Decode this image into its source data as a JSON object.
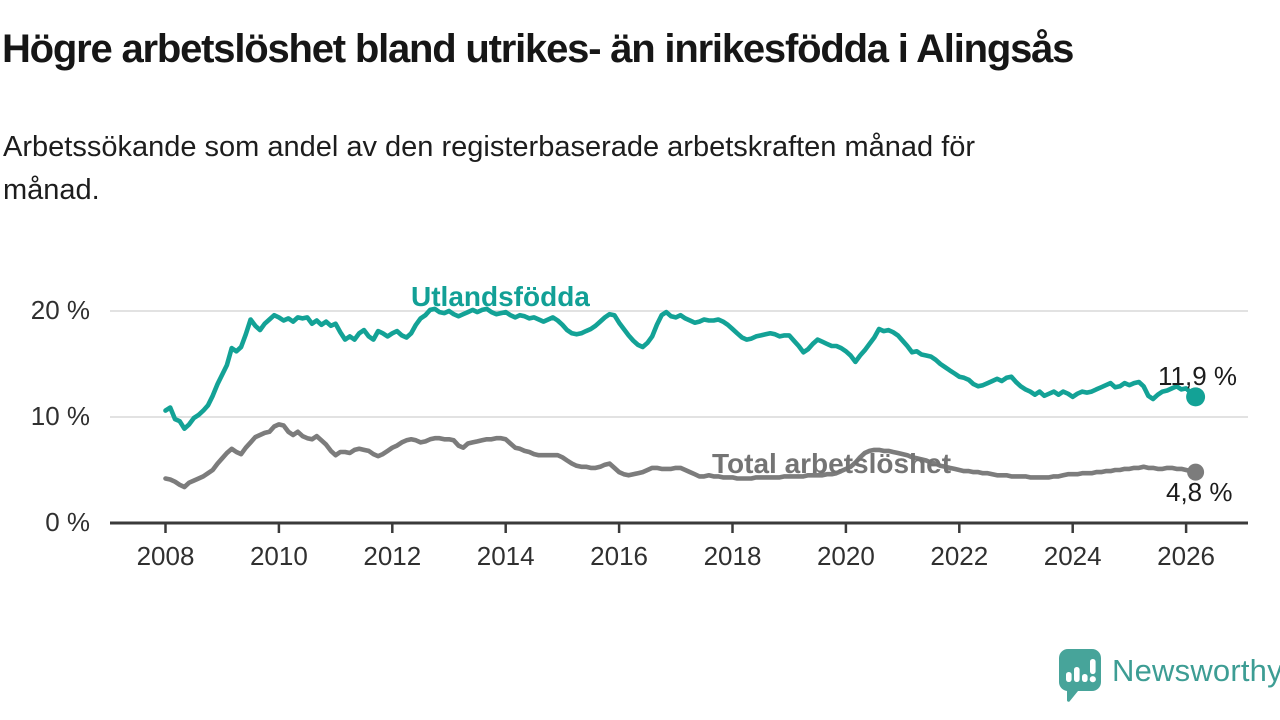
{
  "title": "Högre arbetslöshet bland utrikes- än inrikesfödda i Alingsås",
  "subtitle_line1": "Arbetssökande som andel av den registerbaserade arbetskraften månad för",
  "subtitle_line2": "månad.",
  "branding": {
    "name": "Newsworthy",
    "logo_icon": "speech-bubble-bar-chart-icon",
    "logo_color": "#47a49a",
    "wordmark_color": "#3d9d94"
  },
  "colors": {
    "foreign_born_line": "#13a296",
    "total_line": "#7c7c7c",
    "axis": "#3a3a3a",
    "gridline": "#d9d9d9",
    "text": "#1c1c1c"
  },
  "chart_data": {
    "type": "line",
    "title": "Högre arbetslöshet bland utrikes- än inrikesfödda i Alingsås",
    "subtitle": "Arbetssökande som andel av den registerbaserade arbetskraften månad för månad.",
    "x_unit": "month",
    "x_start_year": 2008,
    "points_per_year": 12,
    "x_end_label_period": "early 2026",
    "grid": "horizontal-only",
    "legend_position": "inline-labels",
    "ylim": [
      0,
      23
    ],
    "y_ticks": [
      {
        "label": "0 %",
        "value": 0
      },
      {
        "label": "10 %",
        "value": 10
      },
      {
        "label": "20 %",
        "value": 20
      }
    ],
    "x_ticks": [
      {
        "label": "2008",
        "year": 2008
      },
      {
        "label": "2010",
        "year": 2010
      },
      {
        "label": "2012",
        "year": 2012
      },
      {
        "label": "2014",
        "year": 2014
      },
      {
        "label": "2016",
        "year": 2016
      },
      {
        "label": "2018",
        "year": 2018
      },
      {
        "label": "2020",
        "year": 2020
      },
      {
        "label": "2022",
        "year": 2022
      },
      {
        "label": "2024",
        "year": 2024
      },
      {
        "label": "2026",
        "year": 2026
      }
    ],
    "series": [
      {
        "name": "Utlandsfödda",
        "color": "#13a296",
        "end_label": "11,9 %",
        "end_value": 11.9,
        "values": [
          10.6,
          10.9,
          9.8,
          9.6,
          8.9,
          9.3,
          9.9,
          10.2,
          10.6,
          11.1,
          12.0,
          13.1,
          14.0,
          14.9,
          16.5,
          16.2,
          16.6,
          17.8,
          19.2,
          18.6,
          18.2,
          18.8,
          19.2,
          19.6,
          19.4,
          19.1,
          19.3,
          19.0,
          19.4,
          19.3,
          19.4,
          18.8,
          19.1,
          18.7,
          19.0,
          18.6,
          18.8,
          18.0,
          17.3,
          17.6,
          17.3,
          17.9,
          18.2,
          17.6,
          17.3,
          18.1,
          17.9,
          17.6,
          17.9,
          18.1,
          17.7,
          17.5,
          17.9,
          18.7,
          19.3,
          19.6,
          20.1,
          20.2,
          19.9,
          19.8,
          20.0,
          19.7,
          19.5,
          19.7,
          19.9,
          20.1,
          19.9,
          20.1,
          20.2,
          19.9,
          19.7,
          19.8,
          19.9,
          19.6,
          19.4,
          19.6,
          19.5,
          19.3,
          19.4,
          19.2,
          19.0,
          19.2,
          19.4,
          19.1,
          18.7,
          18.2,
          17.9,
          17.8,
          17.9,
          18.1,
          18.3,
          18.6,
          19.0,
          19.4,
          19.7,
          19.6,
          18.9,
          18.3,
          17.7,
          17.2,
          16.8,
          16.6,
          17.0,
          17.6,
          18.7,
          19.6,
          19.9,
          19.5,
          19.4,
          19.6,
          19.3,
          19.1,
          18.9,
          19.0,
          19.2,
          19.1,
          19.1,
          19.2,
          19.0,
          18.7,
          18.3,
          17.9,
          17.5,
          17.3,
          17.4,
          17.6,
          17.7,
          17.8,
          17.9,
          17.8,
          17.6,
          17.7,
          17.7,
          17.2,
          16.7,
          16.1,
          16.4,
          16.9,
          17.3,
          17.1,
          16.9,
          16.7,
          16.7,
          16.5,
          16.2,
          15.8,
          15.2,
          15.8,
          16.3,
          16.9,
          17.5,
          18.3,
          18.1,
          18.2,
          18.0,
          17.7,
          17.2,
          16.7,
          16.1,
          16.2,
          15.9,
          15.8,
          15.7,
          15.4,
          15.0,
          14.7,
          14.4,
          14.1,
          13.8,
          13.7,
          13.5,
          13.1,
          12.9,
          13.0,
          13.2,
          13.4,
          13.6,
          13.4,
          13.7,
          13.8,
          13.3,
          12.9,
          12.6,
          12.4,
          12.1,
          12.4,
          12.0,
          12.2,
          12.4,
          12.1,
          12.4,
          12.2,
          11.9,
          12.2,
          12.4,
          12.3,
          12.4,
          12.6,
          12.8,
          13.0,
          13.2,
          12.8,
          12.9,
          13.2,
          13.0,
          13.2,
          13.3,
          12.9,
          12.0,
          11.7,
          12.1,
          12.4,
          12.5,
          12.7,
          12.9,
          12.6,
          12.7,
          12.3,
          11.9
        ]
      },
      {
        "name": "Total arbetslöshet",
        "color": "#7c7c7c",
        "end_label": "4,8 %",
        "end_value": 4.8,
        "values": [
          4.2,
          4.1,
          3.9,
          3.6,
          3.4,
          3.8,
          4.0,
          4.2,
          4.4,
          4.7,
          5.0,
          5.6,
          6.1,
          6.6,
          7.0,
          6.7,
          6.5,
          7.1,
          7.6,
          8.1,
          8.3,
          8.5,
          8.6,
          9.1,
          9.3,
          9.2,
          8.6,
          8.3,
          8.6,
          8.2,
          8.0,
          7.9,
          8.2,
          7.8,
          7.4,
          6.8,
          6.4,
          6.7,
          6.7,
          6.6,
          6.9,
          7.0,
          6.9,
          6.8,
          6.5,
          6.3,
          6.5,
          6.8,
          7.1,
          7.3,
          7.6,
          7.8,
          7.9,
          7.8,
          7.6,
          7.7,
          7.9,
          8.0,
          8.0,
          7.9,
          7.9,
          7.8,
          7.3,
          7.1,
          7.5,
          7.6,
          7.7,
          7.8,
          7.9,
          7.9,
          8.0,
          8.0,
          7.9,
          7.5,
          7.1,
          7.0,
          6.8,
          6.7,
          6.5,
          6.4,
          6.4,
          6.4,
          6.4,
          6.4,
          6.2,
          5.9,
          5.6,
          5.4,
          5.3,
          5.3,
          5.2,
          5.2,
          5.3,
          5.5,
          5.6,
          5.2,
          4.8,
          4.6,
          4.5,
          4.6,
          4.7,
          4.8,
          5.0,
          5.2,
          5.2,
          5.1,
          5.1,
          5.1,
          5.2,
          5.2,
          5.0,
          4.8,
          4.6,
          4.4,
          4.4,
          4.5,
          4.4,
          4.4,
          4.3,
          4.3,
          4.3,
          4.2,
          4.2,
          4.2,
          4.2,
          4.3,
          4.3,
          4.3,
          4.3,
          4.3,
          4.3,
          4.4,
          4.4,
          4.4,
          4.4,
          4.4,
          4.5,
          4.5,
          4.5,
          4.5,
          4.6,
          4.6,
          4.7,
          4.9,
          5.1,
          5.3,
          5.7,
          6.2,
          6.6,
          6.8,
          6.9,
          6.9,
          6.8,
          6.8,
          6.7,
          6.6,
          6.5,
          6.4,
          6.2,
          6.1,
          6.0,
          5.9,
          5.7,
          5.6,
          5.4,
          5.3,
          5.2,
          5.1,
          5.0,
          4.9,
          4.9,
          4.8,
          4.8,
          4.7,
          4.7,
          4.6,
          4.5,
          4.5,
          4.5,
          4.4,
          4.4,
          4.4,
          4.4,
          4.3,
          4.3,
          4.3,
          4.3,
          4.3,
          4.4,
          4.4,
          4.5,
          4.6,
          4.6,
          4.6,
          4.7,
          4.7,
          4.7,
          4.8,
          4.8,
          4.9,
          4.9,
          5.0,
          5.0,
          5.1,
          5.1,
          5.2,
          5.2,
          5.3,
          5.2,
          5.2,
          5.1,
          5.1,
          5.2,
          5.2,
          5.1,
          5.1,
          5.0,
          4.9,
          4.8
        ]
      }
    ]
  }
}
